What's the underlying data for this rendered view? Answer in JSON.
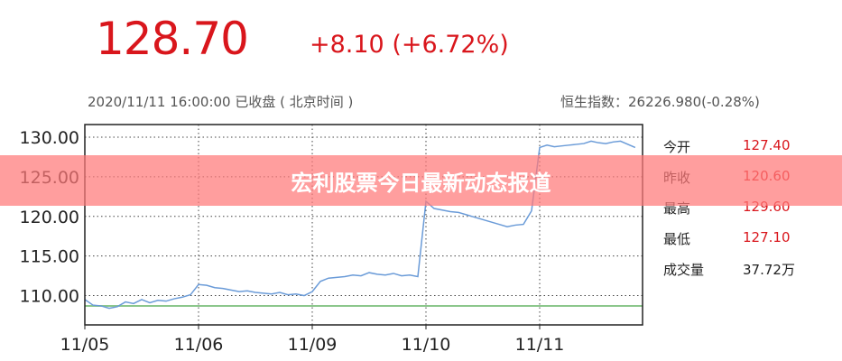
{
  "header": {
    "price": "128.70",
    "change": "+8.10 (+6.72%)",
    "timestamp": "2020/11/11 16:00:00 已收盘 ( 北京时间 )",
    "index": "恒生指数：26226.980(-0.28%)"
  },
  "stats": [
    {
      "label": "今开",
      "value": "127.40",
      "red": true
    },
    {
      "label": "昨收",
      "value": "120.60",
      "red": true
    },
    {
      "label": "最高",
      "value": "129.60",
      "red": true
    },
    {
      "label": "最低",
      "value": "127.10",
      "red": true
    },
    {
      "label": "成交量",
      "value": "37.72万",
      "red": false
    }
  ],
  "banner": {
    "title": "宏利股票今日最新动态报道"
  },
  "colors": {
    "price": "#d9161c",
    "line": "#6a9bd8",
    "prev_close": "#8cc78c",
    "banner": "#ff7878"
  },
  "chart_data": {
    "type": "line",
    "categories": [
      "11/05",
      "11/06",
      "11/09",
      "11/10",
      "11/11"
    ],
    "yticks": [
      "110.00",
      "115.00",
      "120.00",
      "125.00",
      "130.00"
    ],
    "ylim": [
      106.3,
      131.6
    ],
    "grid": true,
    "reference_line": 108.7,
    "series": [
      {
        "values": [
          [
            109.5,
            108.8,
            108.7,
            108.4,
            108.6,
            109.2,
            109.0,
            109.5,
            109.1,
            109.4,
            109.3,
            109.6,
            109.8,
            110.1
          ],
          [
            111.4,
            111.3,
            111.0,
            110.9,
            110.7,
            110.5,
            110.6,
            110.4,
            110.3,
            110.2,
            110.4,
            110.1,
            110.2,
            110.0
          ],
          [
            110.5,
            111.8,
            112.2,
            112.3,
            112.4,
            112.6,
            112.5,
            112.9,
            112.7,
            112.6,
            112.8,
            112.5,
            112.6,
            112.4
          ],
          [
            121.9,
            121.0,
            120.8,
            120.6,
            120.5,
            120.2,
            119.9,
            119.6,
            119.3,
            119.0,
            118.7,
            118.9,
            119.0,
            120.7
          ],
          [
            128.7,
            129.0,
            128.8,
            128.9,
            129.0,
            129.1,
            129.2,
            129.5,
            129.3,
            129.2,
            129.4,
            129.5,
            129.1,
            128.7
          ]
        ]
      }
    ]
  }
}
